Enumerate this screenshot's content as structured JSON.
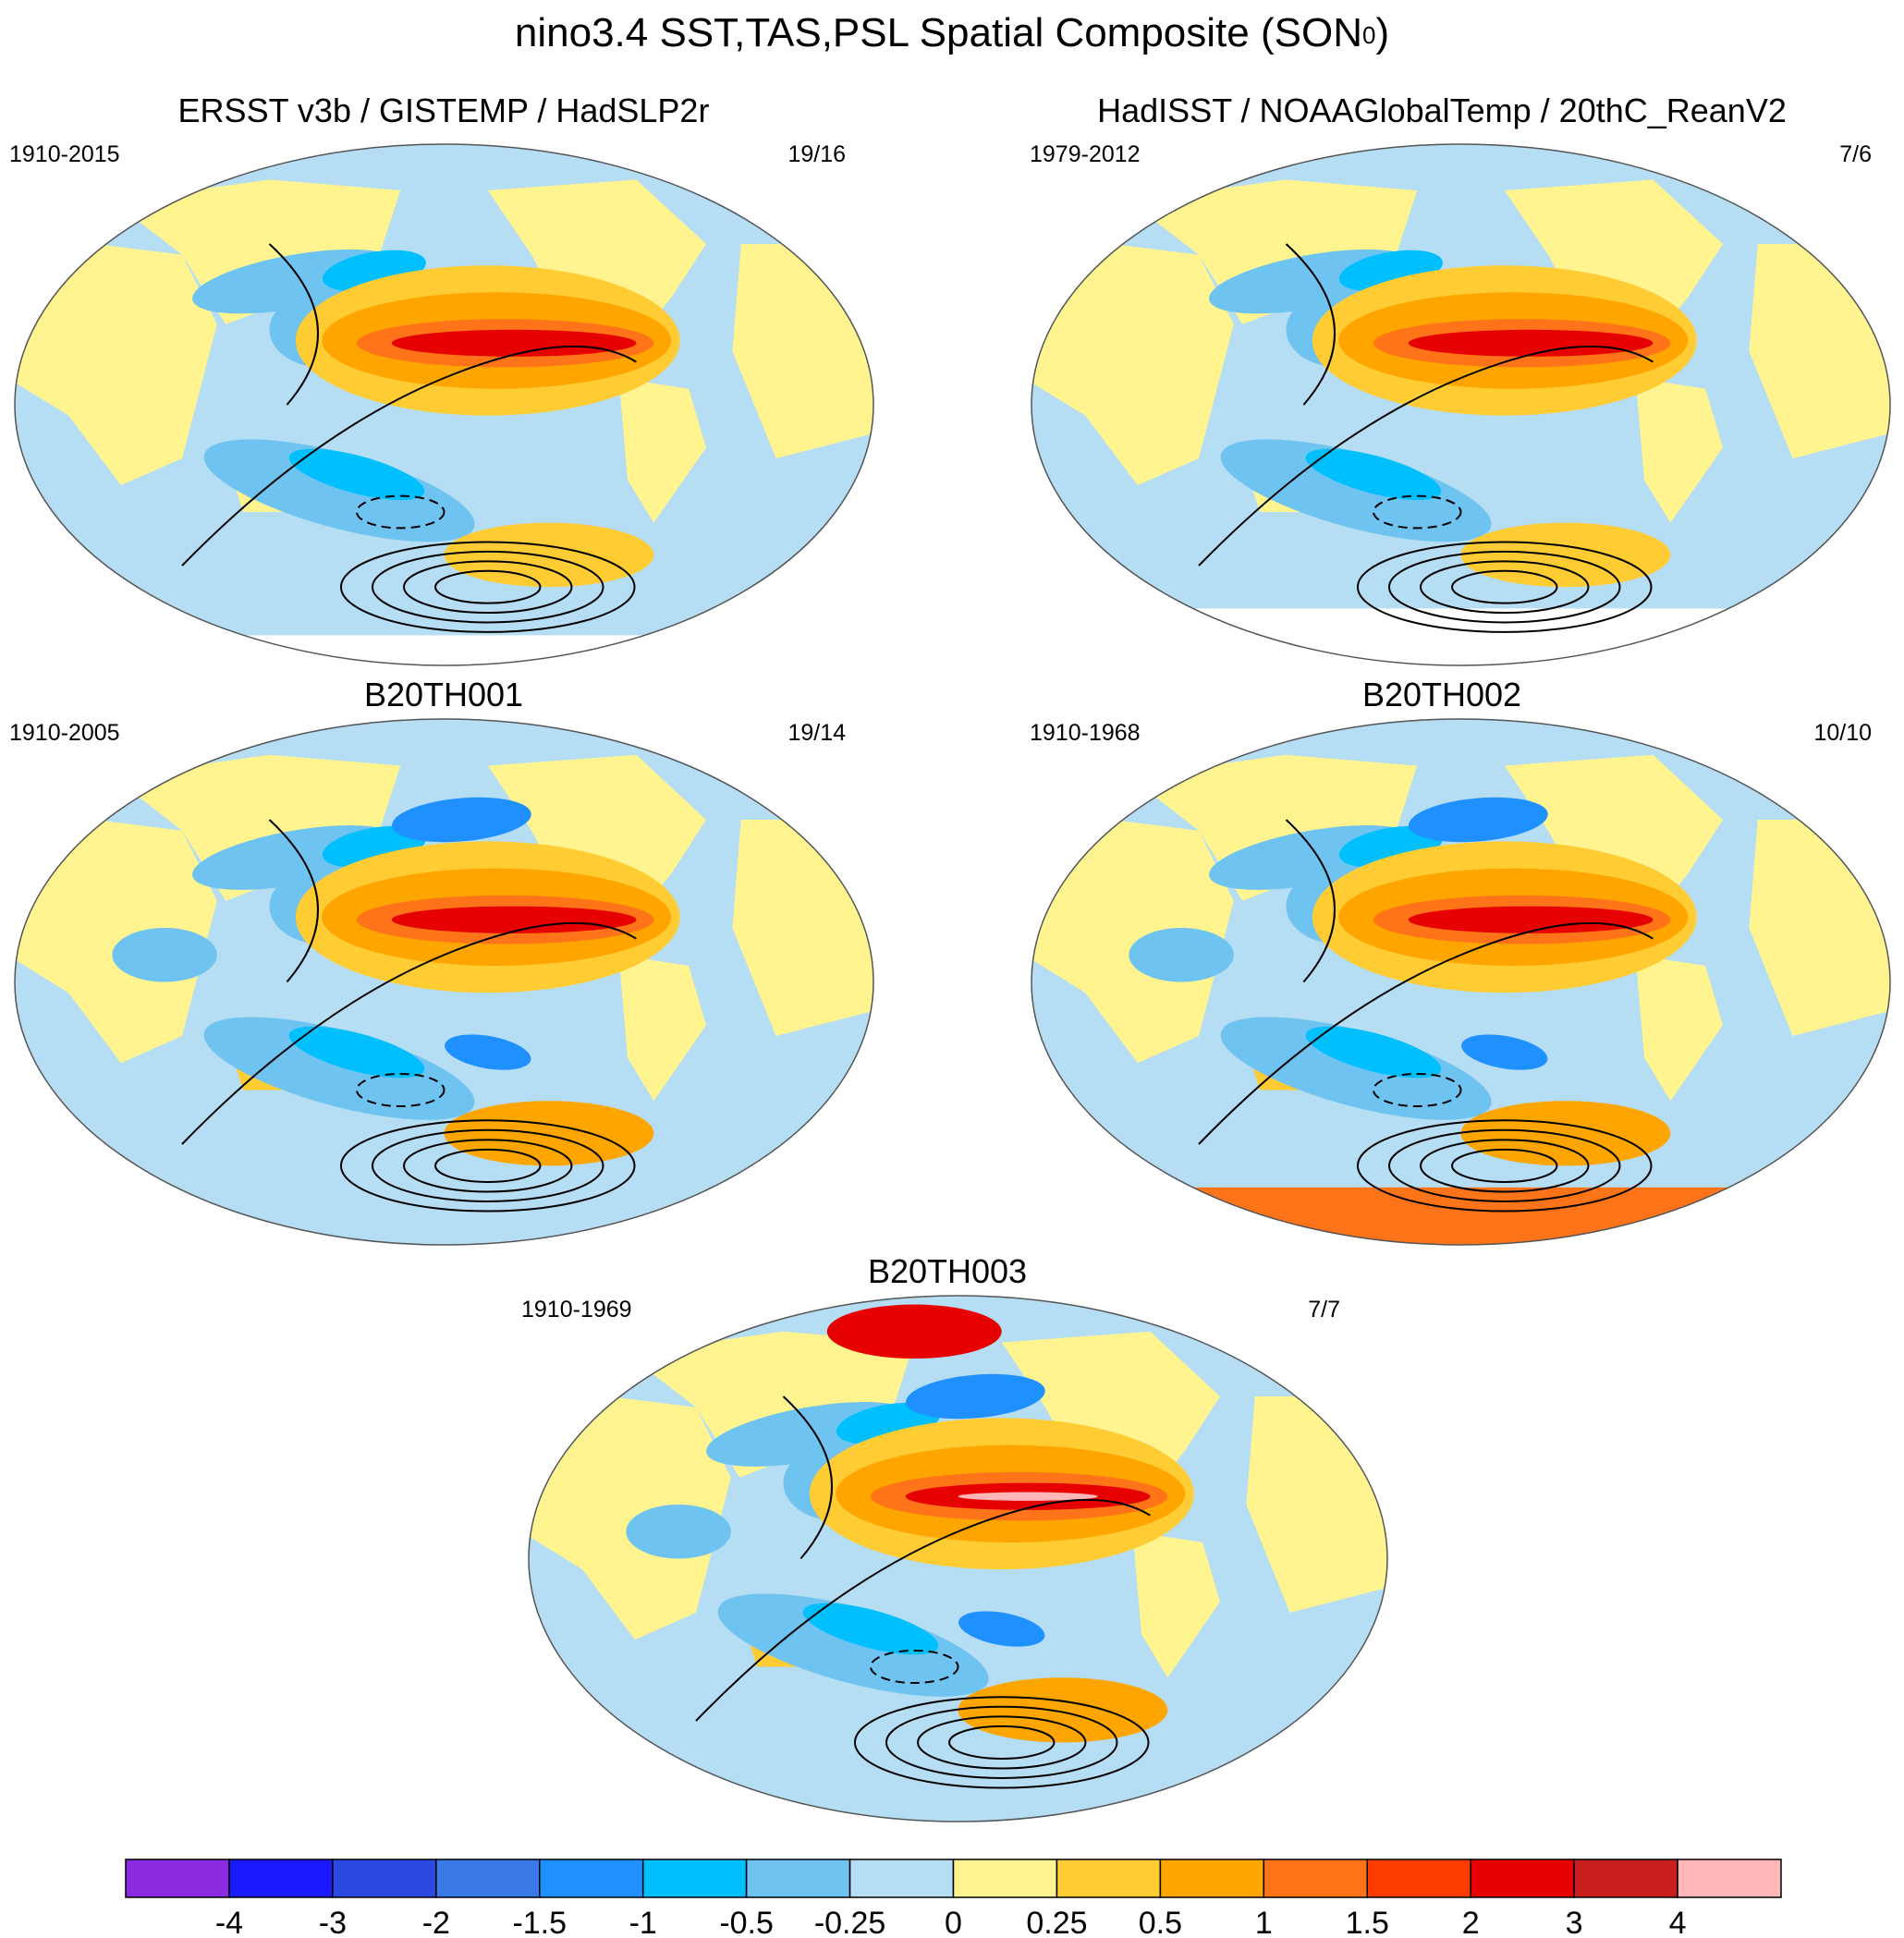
{
  "title_prefix": "nino3.4 SST,TAS,PSL Spatial Composite (SON",
  "title_sup": "0",
  "title_suffix": ")",
  "panels": [
    {
      "title": "ERSST v3b / GISTEMP / HadSLP2r",
      "period": "1910-2015",
      "counts": "19/16"
    },
    {
      "title": "HadISST / NOAAGlobalTemp / 20thC_ReanV2",
      "period": "1979-2012",
      "counts": "7/6"
    },
    {
      "title": "B20TH001",
      "period": "1910-2005",
      "counts": "19/14"
    },
    {
      "title": "B20TH002",
      "period": "1910-1968",
      "counts": "10/10"
    },
    {
      "title": "B20TH003",
      "period": "1910-1969",
      "counts": "7/7"
    }
  ],
  "chart_data": {
    "type": "heatmap",
    "projection": "Robinson-like global, Pacific-centered",
    "shading_variable": "SST / TAS composite anomaly",
    "contour_variable": "PSL composite anomaly (solid positive, dashed negative)",
    "colorbar": {
      "levels": [
        "-4",
        "-3",
        "-2",
        "-1.5",
        "-1",
        "-0.5",
        "-0.25",
        "0",
        "0.25",
        "0.5",
        "1",
        "1.5",
        "2",
        "3",
        "4"
      ],
      "colors": [
        "#8a2be2",
        "#1a1aff",
        "#2b48e0",
        "#3a7ae8",
        "#1e90ff",
        "#00bfff",
        "#6ec3f0",
        "#b5ddf3",
        "#fff48f",
        "#ffcc33",
        "#ffa500",
        "#ff7418",
        "#ff3c00",
        "#e60000",
        "#c81e1e",
        "#ffb6b9"
      ]
    },
    "palette": {
      "ocean_base": "#b5ddf3",
      "land_base": "#fff48f",
      "warm_moderate": "#ffcc33",
      "warm_strong": "#ffa500",
      "warm_stronger": "#ff7418",
      "warm_peak": "#e60000",
      "cool_moderate": "#6ec3f0",
      "cool_strong": "#00bfff",
      "cool_stronger": "#1e90ff",
      "missing": "#ffffff"
    }
  }
}
